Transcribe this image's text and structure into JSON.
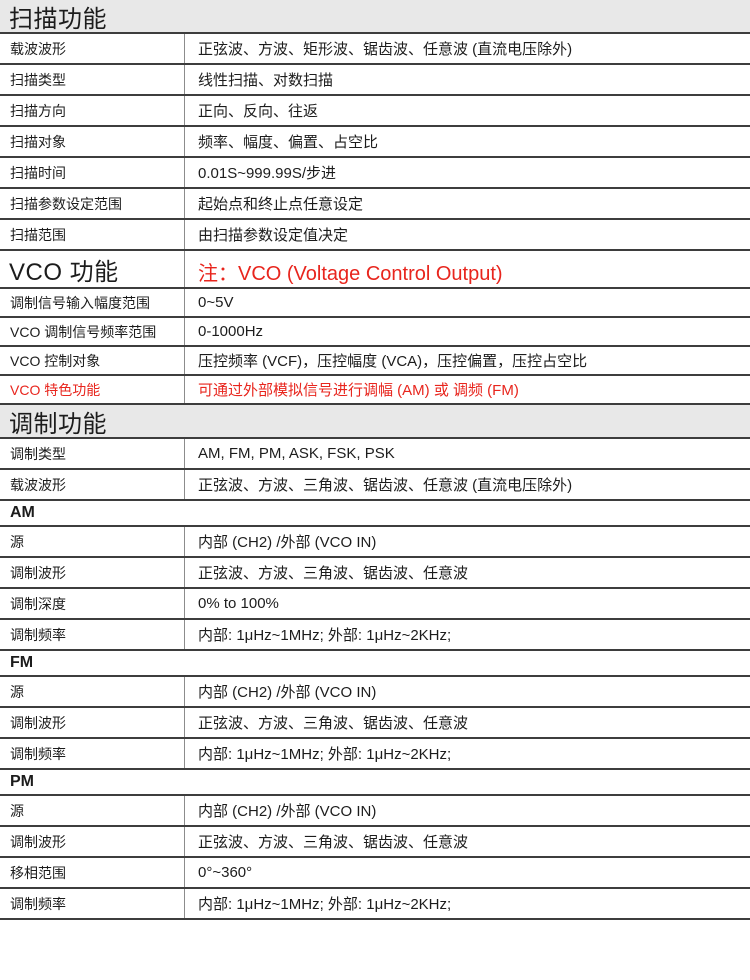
{
  "colors": {
    "accent_red": "#e8251d",
    "header_bg": "#e8e8e8",
    "border_dark": "#3d3d3d",
    "divider_gray": "#8c8c8c"
  },
  "table": {
    "sections": [
      {
        "type": "header",
        "label": "扫描功能"
      },
      {
        "type": "row",
        "label": "载波波形",
        "value": "正弦波、方波、矩形波、锯齿波、任意波 (直流电压除外)"
      },
      {
        "type": "row",
        "label": "扫描类型",
        "value": "线性扫描、对数扫描"
      },
      {
        "type": "row",
        "label": "扫描方向",
        "value": "正向、反向、往返"
      },
      {
        "type": "row",
        "label": "扫描对象",
        "value": "频率、幅度、偏置、占空比"
      },
      {
        "type": "row",
        "label": "扫描时间",
        "value": "0.01S~999.99S/步进"
      },
      {
        "type": "row",
        "label": "扫描参数设定范围",
        "value": "起始点和终止点任意设定"
      },
      {
        "type": "row",
        "label": "扫描范围",
        "value": "由扫描参数设定值决定"
      },
      {
        "type": "vco_header",
        "label": "VCO 功能",
        "note": "注：VCO (Voltage Control Output)"
      },
      {
        "type": "row",
        "label": "调制信号输入幅度范围",
        "value": "0~5V"
      },
      {
        "type": "row",
        "label": "VCO 调制信号频率范围",
        "value": "0-1000Hz"
      },
      {
        "type": "row",
        "label": "VCO 控制对象",
        "value": "压控频率 (VCF)，压控幅度 (VCA)，压控偏置，压控占空比"
      },
      {
        "type": "row",
        "label": "VCO 特色功能",
        "value": "可通过外部模拟信号进行调幅 (AM) 或 调频 (FM)",
        "red": true
      },
      {
        "type": "header",
        "label": "调制功能"
      },
      {
        "type": "row",
        "label": "调制类型",
        "value": "AM, FM, PM, ASK, FSK, PSK"
      },
      {
        "type": "row",
        "label": "载波波形",
        "value": "正弦波、方波、三角波、锯齿波、任意波 (直流电压除外)"
      },
      {
        "type": "subheader",
        "label": "AM"
      },
      {
        "type": "row",
        "label": "源",
        "value": "内部 (CH2) /外部 (VCO IN)"
      },
      {
        "type": "row",
        "label": "调制波形",
        "value": "正弦波、方波、三角波、锯齿波、任意波"
      },
      {
        "type": "row",
        "label": "调制深度",
        "value": "0% to 100%"
      },
      {
        "type": "row",
        "label": "调制频率",
        "value": "内部: 1μHz~1MHz;  外部: 1μHz~2KHz;"
      },
      {
        "type": "subheader",
        "label": "FM"
      },
      {
        "type": "row",
        "label": "源",
        "value": "内部 (CH2) /外部 (VCO IN)"
      },
      {
        "type": "row",
        "label": "调制波形",
        "value": "正弦波、方波、三角波、锯齿波、任意波"
      },
      {
        "type": "row",
        "label": "调制频率",
        "value": "内部: 1μHz~1MHz;  外部: 1μHz~2KHz;"
      },
      {
        "type": "subheader",
        "label": "PM"
      },
      {
        "type": "row",
        "label": "源",
        "value": "内部 (CH2) /外部 (VCO IN)"
      },
      {
        "type": "row",
        "label": "调制波形",
        "value": "正弦波、方波、三角波、锯齿波、任意波"
      },
      {
        "type": "row",
        "label": "移相范围",
        "value": "0°~360°"
      },
      {
        "type": "row",
        "label": "调制频率",
        "value": "内部: 1μHz~1MHz;  外部: 1μHz~2KHz;"
      }
    ]
  }
}
